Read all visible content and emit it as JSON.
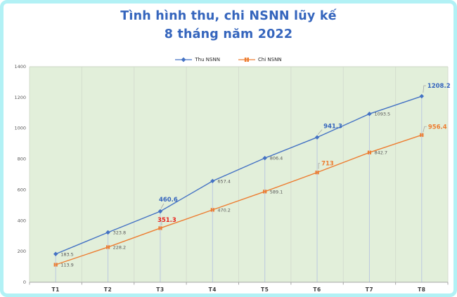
{
  "window": {
    "border_color": "#b2f1f5",
    "background": "#ffffff"
  },
  "chart_data": {
    "type": "line",
    "title": "Tình hình thu, chi NSNN lũy kế 8 tháng năm 2022",
    "title_lines": [
      "Tình hình thu, chi NSNN lũy kế",
      "8 tháng năm 2022"
    ],
    "title_color": "#3565bd",
    "plot_bg": "#e2efda",
    "categories": [
      "T1",
      "T2",
      "T3",
      "T4",
      "T5",
      "T6",
      "T7",
      "T8"
    ],
    "series": [
      {
        "name": "Thu NSNN",
        "color": "#4472c4",
        "marker": "diamond",
        "values": [
          183.5,
          323.8,
          460.6,
          657.4,
          806.4,
          941.3,
          1093.5,
          1208.2
        ],
        "labels": [
          "183.5",
          "323.8",
          "460.6",
          "657.4",
          "806.4",
          "941.3",
          "1093.5",
          "1208.2"
        ],
        "callouts": [
          {
            "index": 2,
            "label": "460.6",
            "color": "#3565bd"
          },
          {
            "index": 5,
            "label": "941.3",
            "color": "#3565bd"
          },
          {
            "index": 7,
            "label": "1208.2",
            "color": "#3565bd"
          }
        ]
      },
      {
        "name": "Chi NSNN",
        "color": "#ed7d31",
        "marker": "square",
        "values": [
          113.9,
          228.2,
          351.3,
          470.2,
          589.1,
          713,
          842.7,
          956.4
        ],
        "labels": [
          "113.9",
          "228.2",
          "351.3",
          "470.2",
          "589.1",
          "713",
          "842.7",
          "956.4"
        ],
        "callouts": [
          {
            "index": 2,
            "label": "351.3",
            "color": "#e8211b"
          },
          {
            "index": 5,
            "label": "713",
            "color": "#ed7d31"
          },
          {
            "index": 7,
            "label": "956.4",
            "color": "#ed7d31"
          }
        ]
      }
    ],
    "ylim": [
      0,
      1400
    ],
    "ytick_step": 200,
    "yticks": [
      "0",
      "200",
      "400",
      "600",
      "800",
      "1000",
      "1200",
      "1400"
    ],
    "legend": {
      "position": "top",
      "items": [
        "Thu NSNN",
        "Chi NSNN"
      ]
    },
    "grid": {
      "vertical": true,
      "horizontal": false
    },
    "drop_lines": true,
    "axis_text_color": "#595959",
    "category_text_color": "#3f3f3f"
  }
}
